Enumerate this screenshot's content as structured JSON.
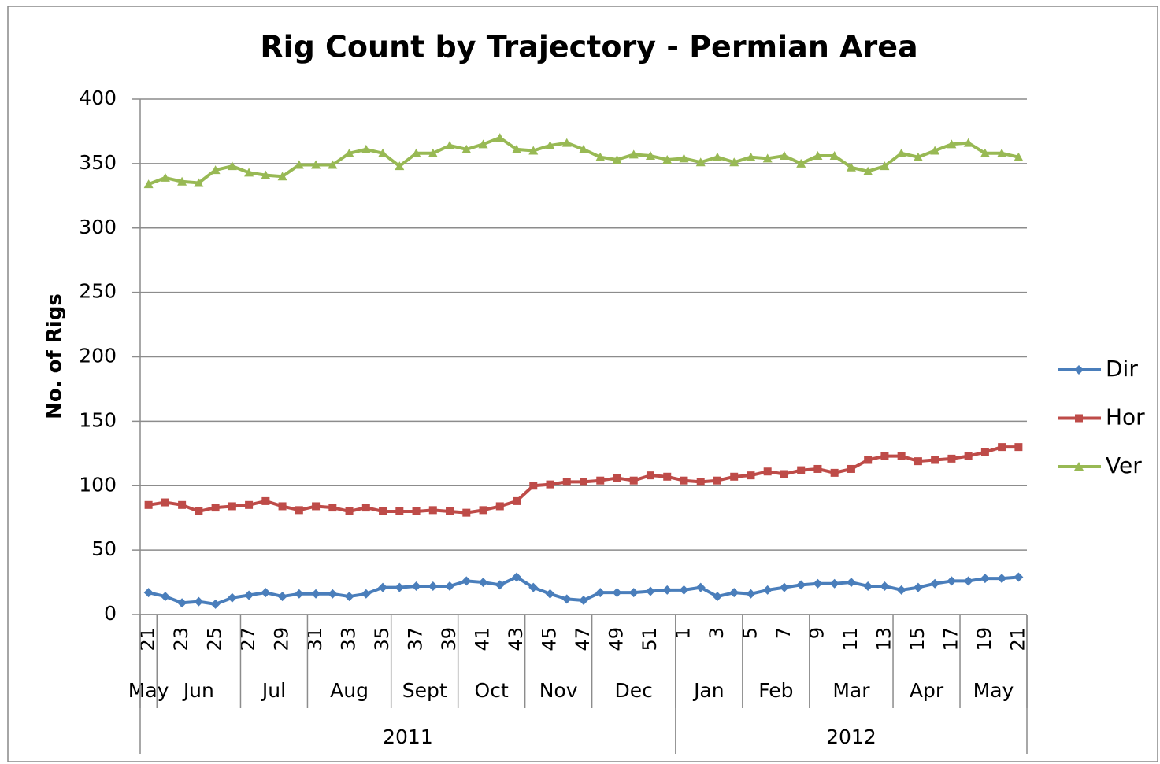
{
  "chart_data": {
    "type": "line",
    "title": "Rig Count by Trajectory - Permian Area",
    "y_label": "No. of Rigs",
    "categories": [
      "21",
      null,
      "23",
      null,
      "25",
      null,
      "27",
      null,
      "29",
      null,
      "31",
      null,
      "33",
      null,
      "35",
      null,
      "37",
      null,
      "39",
      null,
      "41",
      null,
      "43",
      null,
      "45",
      null,
      "47",
      null,
      "49",
      null,
      "51",
      null,
      "1",
      null,
      "3",
      null,
      "5",
      null,
      "7",
      null,
      "9",
      null,
      "11",
      null,
      "13",
      null,
      "15",
      null,
      "17",
      null,
      "19",
      null,
      "21"
    ],
    "month_labels": [
      "May",
      "Jun",
      null,
      null,
      null,
      null,
      "Jul",
      null,
      null,
      null,
      "Aug",
      null,
      null,
      null,
      null,
      "Sept",
      null,
      null,
      null,
      "Oct",
      null,
      null,
      null,
      "Nov",
      null,
      null,
      null,
      "Dec",
      null,
      null,
      null,
      null,
      "Jan",
      null,
      null,
      null,
      "Feb",
      null,
      null,
      null,
      "Mar",
      null,
      null,
      null,
      null,
      "Apr",
      null,
      null,
      null,
      "May",
      null,
      null,
      null
    ],
    "year_labels": [
      "2011",
      null,
      null,
      null,
      null,
      null,
      null,
      null,
      null,
      null,
      null,
      null,
      null,
      null,
      null,
      null,
      null,
      null,
      null,
      null,
      null,
      null,
      null,
      null,
      null,
      null,
      null,
      null,
      null,
      null,
      null,
      null,
      "2012",
      null,
      null,
      null,
      null,
      null,
      null,
      null,
      null,
      null,
      null,
      null,
      null,
      null,
      null,
      null,
      null,
      null,
      null,
      null,
      null
    ],
    "series": [
      {
        "name": "Dir",
        "color": "#4a7ebb",
        "marker": "diamond",
        "values": [
          17,
          14,
          9,
          10,
          8,
          13,
          15,
          17,
          14,
          16,
          16,
          16,
          14,
          16,
          21,
          21,
          22,
          22,
          22,
          26,
          25,
          23,
          29,
          21,
          16,
          12,
          11,
          17,
          17,
          17,
          18,
          19,
          19,
          21,
          14,
          17,
          16,
          19,
          21,
          23,
          24,
          24,
          25,
          22,
          22,
          19,
          21,
          24,
          26,
          26,
          28,
          28,
          29
        ]
      },
      {
        "name": "Hor",
        "color": "#be4b48",
        "marker": "square",
        "values": [
          85,
          87,
          85,
          80,
          83,
          84,
          85,
          88,
          84,
          81,
          84,
          83,
          80,
          83,
          80,
          80,
          80,
          81,
          80,
          79,
          81,
          84,
          88,
          100,
          101,
          103,
          103,
          104,
          106,
          104,
          108,
          107,
          104,
          103,
          104,
          107,
          108,
          111,
          109,
          112,
          113,
          110,
          113,
          120,
          123,
          123,
          119,
          120,
          121,
          123,
          126,
          130,
          130
        ]
      },
      {
        "name": "Ver",
        "color": "#98b954",
        "marker": "triangle",
        "values": [
          334,
          339,
          336,
          335,
          345,
          348,
          343,
          341,
          340,
          349,
          349,
          349,
          358,
          361,
          358,
          348,
          358,
          358,
          364,
          361,
          365,
          370,
          361,
          360,
          364,
          366,
          361,
          355,
          353,
          357,
          356,
          353,
          354,
          351,
          355,
          351,
          355,
          354,
          356,
          350,
          356,
          356,
          347,
          344,
          348,
          358,
          355,
          360,
          365,
          366,
          358,
          358,
          355
        ]
      }
    ],
    "ylim": [
      0,
      400
    ],
    "yticks": [
      0,
      50,
      100,
      150,
      200,
      250,
      300,
      350,
      400
    ],
    "grid": true,
    "legend": "right"
  }
}
